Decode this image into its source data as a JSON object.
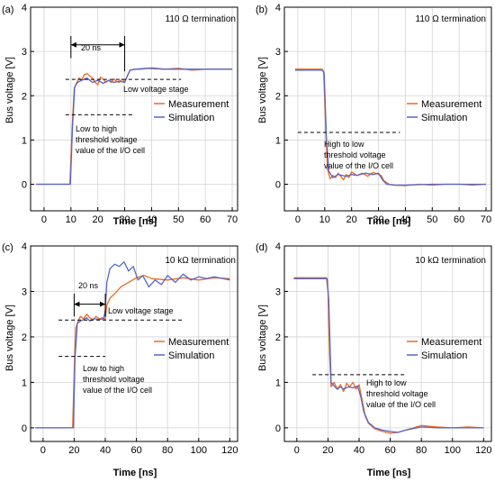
{
  "chart_data": [
    {
      "panel": "(a)",
      "type": "line",
      "termination": "110 Ω termination",
      "xlabel": "Time [ns]",
      "ylabel": "Bus voltage [V]",
      "xlim": [
        -5,
        72
      ],
      "ylim": [
        -0.6,
        4
      ],
      "xticks": [
        0,
        10,
        20,
        30,
        40,
        50,
        60,
        70
      ],
      "yticks": [
        0,
        1,
        2,
        3,
        4
      ],
      "grid": true,
      "legend_position": "middle-right",
      "series": [
        {
          "name": "Measurement",
          "color": "#f06a1e",
          "x": [
            -3,
            9.6,
            10.4,
            11.2,
            12,
            13,
            14,
            15,
            16,
            17,
            18,
            19,
            20,
            21,
            22,
            23,
            24,
            25,
            26,
            27,
            28,
            29,
            30,
            31,
            32,
            34,
            36,
            40,
            45,
            50,
            55,
            60,
            65,
            70
          ],
          "y": [
            0,
            0,
            1.2,
            2.15,
            2.28,
            2.4,
            2.35,
            2.48,
            2.5,
            2.45,
            2.4,
            2.3,
            2.25,
            2.42,
            2.38,
            2.3,
            2.35,
            2.3,
            2.38,
            2.32,
            2.3,
            2.38,
            2.3,
            2.45,
            2.58,
            2.6,
            2.6,
            2.63,
            2.6,
            2.62,
            2.58,
            2.6,
            2.6,
            2.6
          ]
        },
        {
          "name": "Simulation",
          "color": "#5566cc",
          "x": [
            -3,
            9.8,
            10.6,
            11.4,
            12.5,
            14,
            16,
            18,
            20,
            22,
            24,
            26,
            28,
            30,
            31,
            32,
            34,
            38,
            45,
            55,
            65,
            70
          ],
          "y": [
            0,
            0,
            1.3,
            2.2,
            2.3,
            2.35,
            2.4,
            2.3,
            2.35,
            2.28,
            2.35,
            2.3,
            2.33,
            2.3,
            2.45,
            2.58,
            2.6,
            2.62,
            2.6,
            2.6,
            2.6,
            2.6
          ]
        }
      ],
      "annotations": [
        {
          "text": "20 ns",
          "kind": "dimension-arrow"
        },
        {
          "text": "Low voltage stage",
          "kind": "dashed-line"
        },
        {
          "lines": [
            "Low to high",
            "threshold voltage",
            "value of the I/O cell"
          ],
          "kind": "dashed-line"
        }
      ]
    },
    {
      "panel": "(b)",
      "type": "line",
      "termination": "110 Ω termination",
      "xlabel": "Time [ns]",
      "ylabel": "Bus voltage [V]",
      "xlim": [
        -5,
        72
      ],
      "ylim": [
        -0.6,
        4
      ],
      "xticks": [
        0,
        10,
        20,
        30,
        40,
        50,
        60,
        70
      ],
      "yticks": [
        0,
        1,
        2,
        3,
        4
      ],
      "grid": true,
      "legend_position": "middle-right",
      "series": [
        {
          "name": "Measurement",
          "color": "#f06a1e",
          "x": [
            -1,
            9,
            9.6,
            10.4,
            11,
            12,
            13,
            14,
            15,
            16,
            17,
            18,
            19,
            20,
            22,
            24,
            26,
            28,
            30,
            31,
            32,
            34,
            36,
            40,
            45,
            50,
            55,
            60,
            65,
            70
          ],
          "y": [
            2.6,
            2.6,
            2.55,
            1.2,
            0.35,
            0.12,
            0.2,
            0.15,
            0.25,
            0.18,
            0.1,
            0.22,
            0.15,
            0.28,
            0.2,
            0.25,
            0.18,
            0.27,
            0.22,
            0.2,
            0.08,
            0.0,
            -0.02,
            -0.03,
            0.0,
            -0.02,
            0.0,
            0.0,
            -0.02,
            0.0
          ]
        },
        {
          "name": "Simulation",
          "color": "#5566cc",
          "x": [
            -1,
            9.2,
            9.8,
            10.6,
            11.5,
            13,
            15,
            18,
            20,
            22,
            25,
            28,
            30,
            31.5,
            33,
            36,
            40,
            50,
            60,
            70
          ],
          "y": [
            2.58,
            2.58,
            2.5,
            1.1,
            0.3,
            0.15,
            0.22,
            0.18,
            0.22,
            0.2,
            0.25,
            0.22,
            0.25,
            0.1,
            0.0,
            -0.02,
            -0.02,
            0.0,
            0.0,
            0.0
          ]
        }
      ],
      "annotations": [
        {
          "lines": [
            "High to low",
            "threshold voltage",
            "value of the I/O cell"
          ],
          "kind": "dashed-line"
        }
      ]
    },
    {
      "panel": "(c)",
      "type": "line",
      "termination": "10 kΩ termination",
      "xlabel": "Time [ns]",
      "ylabel": "Bus voltage [V]",
      "xlim": [
        -8,
        125
      ],
      "ylim": [
        -0.3,
        4
      ],
      "xticks": [
        0,
        20,
        40,
        60,
        80,
        100,
        120
      ],
      "yticks": [
        0,
        1,
        2,
        3,
        4
      ],
      "grid": true,
      "legend_position": "middle-right",
      "series": [
        {
          "name": "Measurement",
          "color": "#f06a1e",
          "x": [
            -5,
            19,
            20,
            21,
            22,
            24,
            26,
            28,
            30,
            32,
            34,
            36,
            38,
            40,
            41,
            43,
            46,
            50,
            55,
            60,
            65,
            70,
            80,
            90,
            100,
            110,
            120
          ],
          "y": [
            0,
            0,
            1.2,
            2.2,
            2.3,
            2.45,
            2.4,
            2.5,
            2.42,
            2.38,
            2.45,
            2.4,
            2.42,
            2.38,
            2.7,
            2.85,
            2.95,
            3.1,
            3.2,
            3.3,
            3.35,
            3.28,
            3.25,
            3.3,
            3.25,
            3.3,
            3.28
          ]
        },
        {
          "name": "Simulation",
          "color": "#5566cc",
          "x": [
            -5,
            19.5,
            20.5,
            22,
            24,
            26,
            28,
            30,
            33,
            36,
            39,
            40,
            41,
            43,
            46,
            49,
            52,
            55,
            58,
            61,
            64,
            68,
            72,
            76,
            80,
            85,
            90,
            95,
            100,
            105,
            110,
            120
          ],
          "y": [
            0,
            0,
            1.5,
            2.3,
            2.35,
            2.38,
            2.42,
            2.35,
            2.4,
            2.38,
            2.4,
            2.6,
            3.2,
            3.5,
            3.6,
            3.55,
            3.65,
            3.45,
            3.55,
            3.25,
            3.35,
            3.1,
            3.25,
            3.15,
            3.35,
            3.2,
            3.38,
            3.25,
            3.32,
            3.28,
            3.32,
            3.25
          ]
        }
      ],
      "annotations": [
        {
          "text": "20 ns",
          "kind": "dimension-arrow"
        },
        {
          "text": "Low voltage stage",
          "kind": "dashed-line"
        },
        {
          "lines": [
            "Low to high",
            "threshold voltage",
            "value of the I/O cell"
          ],
          "kind": "dashed-line"
        }
      ]
    },
    {
      "panel": "(d)",
      "type": "line",
      "termination": "10 kΩ termination",
      "xlabel": "Time [ns]",
      "ylabel": "Bus voltage [V]",
      "xlim": [
        -8,
        125
      ],
      "ylim": [
        -0.3,
        4
      ],
      "xticks": [
        0,
        20,
        40,
        60,
        80,
        100,
        120
      ],
      "yticks": [
        0,
        1,
        2,
        3,
        4
      ],
      "grid": true,
      "legend_position": "middle-right",
      "series": [
        {
          "name": "Measurement",
          "color": "#f06a1e",
          "x": [
            -2,
            19,
            20,
            21,
            22,
            24,
            26,
            28,
            30,
            32,
            34,
            36,
            38,
            40,
            42,
            44,
            46,
            50,
            55,
            60,
            65,
            70,
            75,
            80,
            90,
            100,
            110,
            120
          ],
          "y": [
            3.3,
            3.3,
            3.0,
            1.6,
            0.9,
            1.0,
            0.85,
            0.95,
            0.8,
            0.98,
            0.9,
            1.0,
            0.85,
            0.95,
            0.6,
            0.25,
            0.1,
            -0.02,
            -0.08,
            -0.12,
            -0.1,
            -0.05,
            0.0,
            0.05,
            0.02,
            0.0,
            0.02,
            0.0
          ]
        },
        {
          "name": "Simulation",
          "color": "#5566cc",
          "x": [
            -2,
            19.5,
            20.5,
            22,
            24,
            26,
            28,
            30,
            33,
            36,
            39,
            41,
            43,
            46,
            50,
            55,
            60,
            65,
            70,
            80,
            90,
            100,
            110,
            120
          ],
          "y": [
            3.28,
            3.28,
            2.8,
            1.0,
            0.92,
            0.85,
            0.9,
            0.85,
            0.9,
            0.88,
            0.92,
            0.7,
            0.35,
            0.12,
            0.0,
            -0.05,
            -0.08,
            -0.1,
            -0.05,
            0.02,
            0.0,
            0.0,
            0.0,
            0.0
          ]
        }
      ],
      "annotations": [
        {
          "lines": [
            "High to low",
            "threshold voltage",
            "value of the I/O cell"
          ],
          "kind": "dashed-line"
        }
      ]
    }
  ]
}
